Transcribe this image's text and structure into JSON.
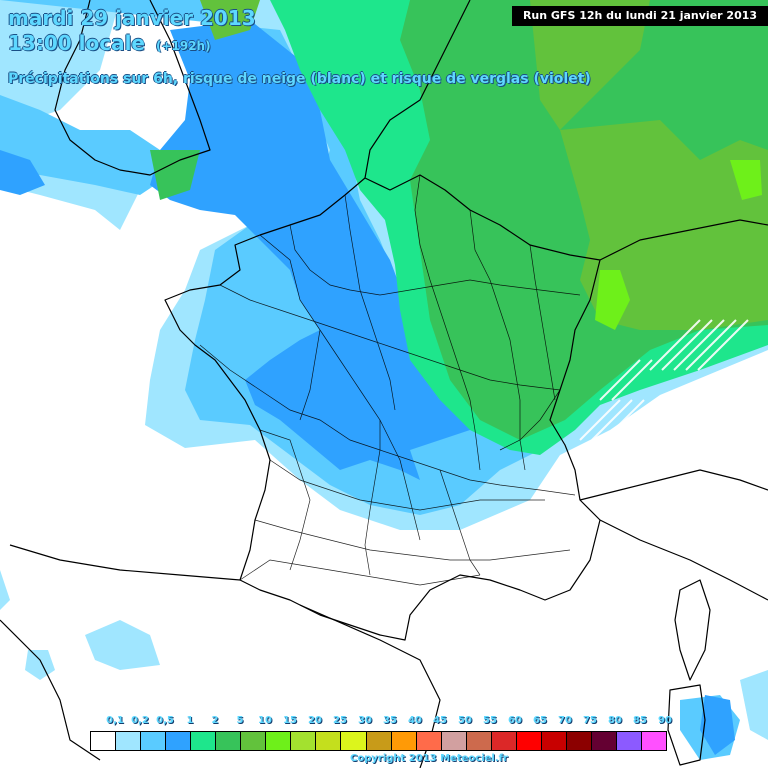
{
  "header": {
    "date": "mardi 29 janvier 2013",
    "time": "13:00 locale",
    "lead": "(+192h)",
    "description": "Précipitations sur 6h, risque de neige (blanc) et risque de verglas (violet)",
    "run": "Run GFS 12h du lundi 21 janvier 2013"
  },
  "legend": {
    "labels": [
      "0,1",
      "0,2",
      "0,5",
      "1",
      "2",
      "5",
      "10",
      "15",
      "20",
      "25",
      "30",
      "35",
      "40",
      "45",
      "50",
      "55",
      "60",
      "65",
      "70",
      "75",
      "80",
      "85",
      "90"
    ],
    "colors": [
      "#ffffff",
      "#a0e6ff",
      "#5acbff",
      "#2fa2ff",
      "#1ee68c",
      "#37c35a",
      "#62c23c",
      "#6ef01a",
      "#a3e12f",
      "#c4df1d",
      "#dcf51c",
      "#c89b19",
      "#ff9a06",
      "#ff6b4a",
      "#d2a0a0",
      "#cd6a4d",
      "#dc2828",
      "#ff0000",
      "#c80000",
      "#8c0000",
      "#640032",
      "#8c5aff",
      "#ff50ff"
    ]
  },
  "copyright": "Copyright 2013 Meteociel.fr",
  "colors": {
    "sea_white": "#ffffff",
    "precip_light": "#a0e6ff",
    "precip_mid": "#5acbff",
    "precip_strong": "#2fa2ff",
    "green_1": "#1ee68c",
    "green_2": "#37c35a",
    "green_3": "#62c23c",
    "green_4": "#6ef01a",
    "title_text": "#5ed8ff"
  }
}
